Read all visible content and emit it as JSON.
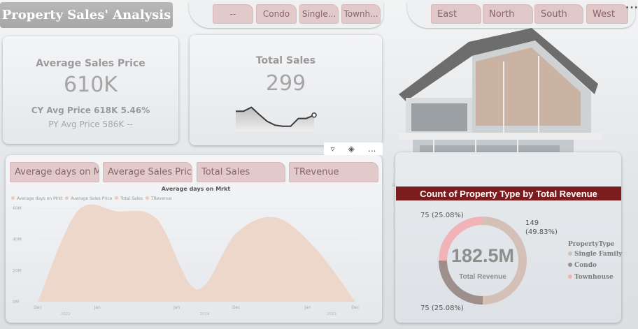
{
  "title": "Property Sales' Analysis",
  "property_slicer": {
    "items": [
      "--",
      "Condo",
      "Single...",
      "Townh..."
    ]
  },
  "region_slicer": {
    "items": [
      "East",
      "North",
      "South",
      "West"
    ]
  },
  "more_label": "...",
  "kpi_avg_price": {
    "title": "Average Sales Price",
    "value": "610K",
    "cy_line": "CY Avg Price 618K 5.46%",
    "py_line": "PY Avg Price 586K --"
  },
  "kpi_total_sales": {
    "title": "Total Sales",
    "value": "299",
    "sparkline": [
      0.62,
      0.62,
      0.76,
      0.5,
      0.26,
      0.12,
      0.08,
      0.08,
      0.36,
      0.36,
      0.48
    ]
  },
  "visual_toolbar": {
    "filter_icon": "filter-icon",
    "eraser_icon": "eraser-icon",
    "more": "..."
  },
  "tabs": [
    "Average days on M...",
    "Average Sales Price",
    "Total Sales",
    "TRevenue"
  ],
  "colors": {
    "accent": "#7b1c1f",
    "area_fill": "#edd7cb",
    "donut_single_family": "#d5c0b8",
    "donut_condo": "#9e8f8c",
    "donut_townhouse": "#f0b4b8"
  },
  "chart_data": {
    "type": "area",
    "title": "Average days on Mrkt",
    "legend": [
      "Average days on Mrkt",
      "Average Sales Price",
      "Total Sales",
      "TRevenue"
    ],
    "legend_position": "top-left",
    "y_ticks": [
      "0M",
      "20M",
      "40M",
      "60M"
    ],
    "ylim": [
      0,
      60
    ],
    "x_ticks": [
      "Dec",
      "Jan",
      "Jan",
      "Dec",
      "Jan",
      "Dec"
    ],
    "x_year_labels": [
      "2022",
      "2024",
      "2023"
    ],
    "series": [
      {
        "name": "Average days on Mrkt",
        "x": [
          0,
          1,
          2,
          3,
          4,
          5,
          6,
          7,
          8
        ],
        "values": [
          0,
          58,
          58,
          53,
          8,
          44,
          54,
          34,
          0
        ]
      }
    ]
  },
  "donut": {
    "title": "Count of Property Type by Total Revenue",
    "center_value": "182.5M",
    "center_label": "Total Revenue",
    "segments": [
      {
        "label": "Single Family",
        "value": 149,
        "pct_label": "149",
        "pct2": "(49.83%)"
      },
      {
        "label": "Condo",
        "value": 75,
        "pct_label": "75 (25.08%)"
      },
      {
        "label": "Townhouse",
        "value": 75,
        "pct_label": "75 (25.08%)"
      }
    ],
    "legend_title": "PropertyType"
  }
}
